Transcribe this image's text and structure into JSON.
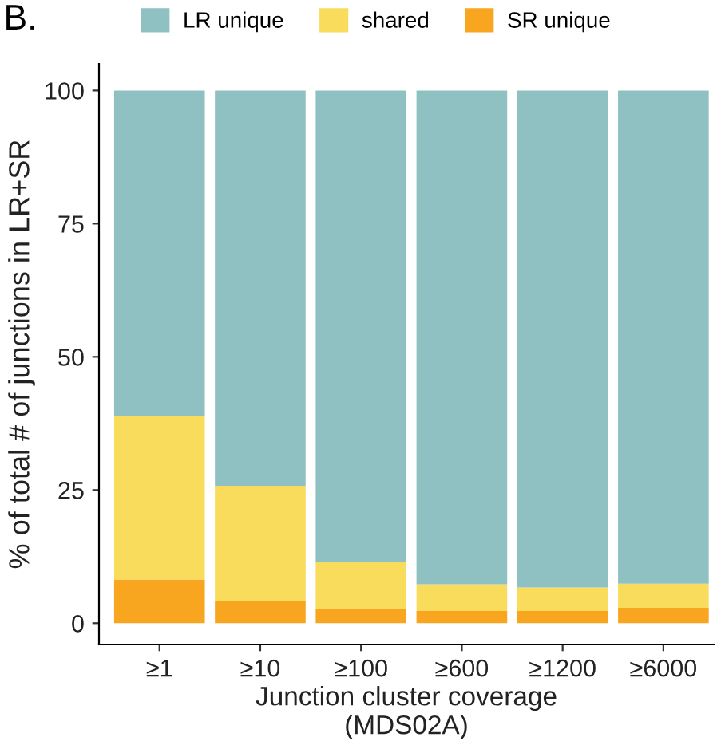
{
  "chart_data": {
    "type": "bar",
    "stacked": true,
    "xlabel": "Junction cluster coverage\n(MDS02A)",
    "ylabel": "% of total # of junctions in LR+SR",
    "annotations": [
      "B."
    ],
    "categories": [
      "≥1",
      "≥10",
      "≥100",
      "≥600",
      "≥1200",
      "≥6000"
    ],
    "series": [
      {
        "name": "SR unique",
        "color": "#f8a51f",
        "values": [
          8.2,
          4.2,
          2.6,
          2.3,
          2.3,
          2.9
        ]
      },
      {
        "name": "shared",
        "color": "#f9dc5c",
        "values": [
          30.7,
          21.6,
          8.9,
          5.0,
          4.4,
          4.5
        ]
      },
      {
        "name": "LR unique",
        "color": "#8fc1c2",
        "values": [
          61.1,
          74.2,
          88.5,
          92.7,
          93.3,
          92.6
        ]
      }
    ],
    "ylim": [
      -4,
      105
    ],
    "yticks": [
      0,
      25,
      50,
      75,
      100
    ],
    "grid": false,
    "legend": "top"
  }
}
